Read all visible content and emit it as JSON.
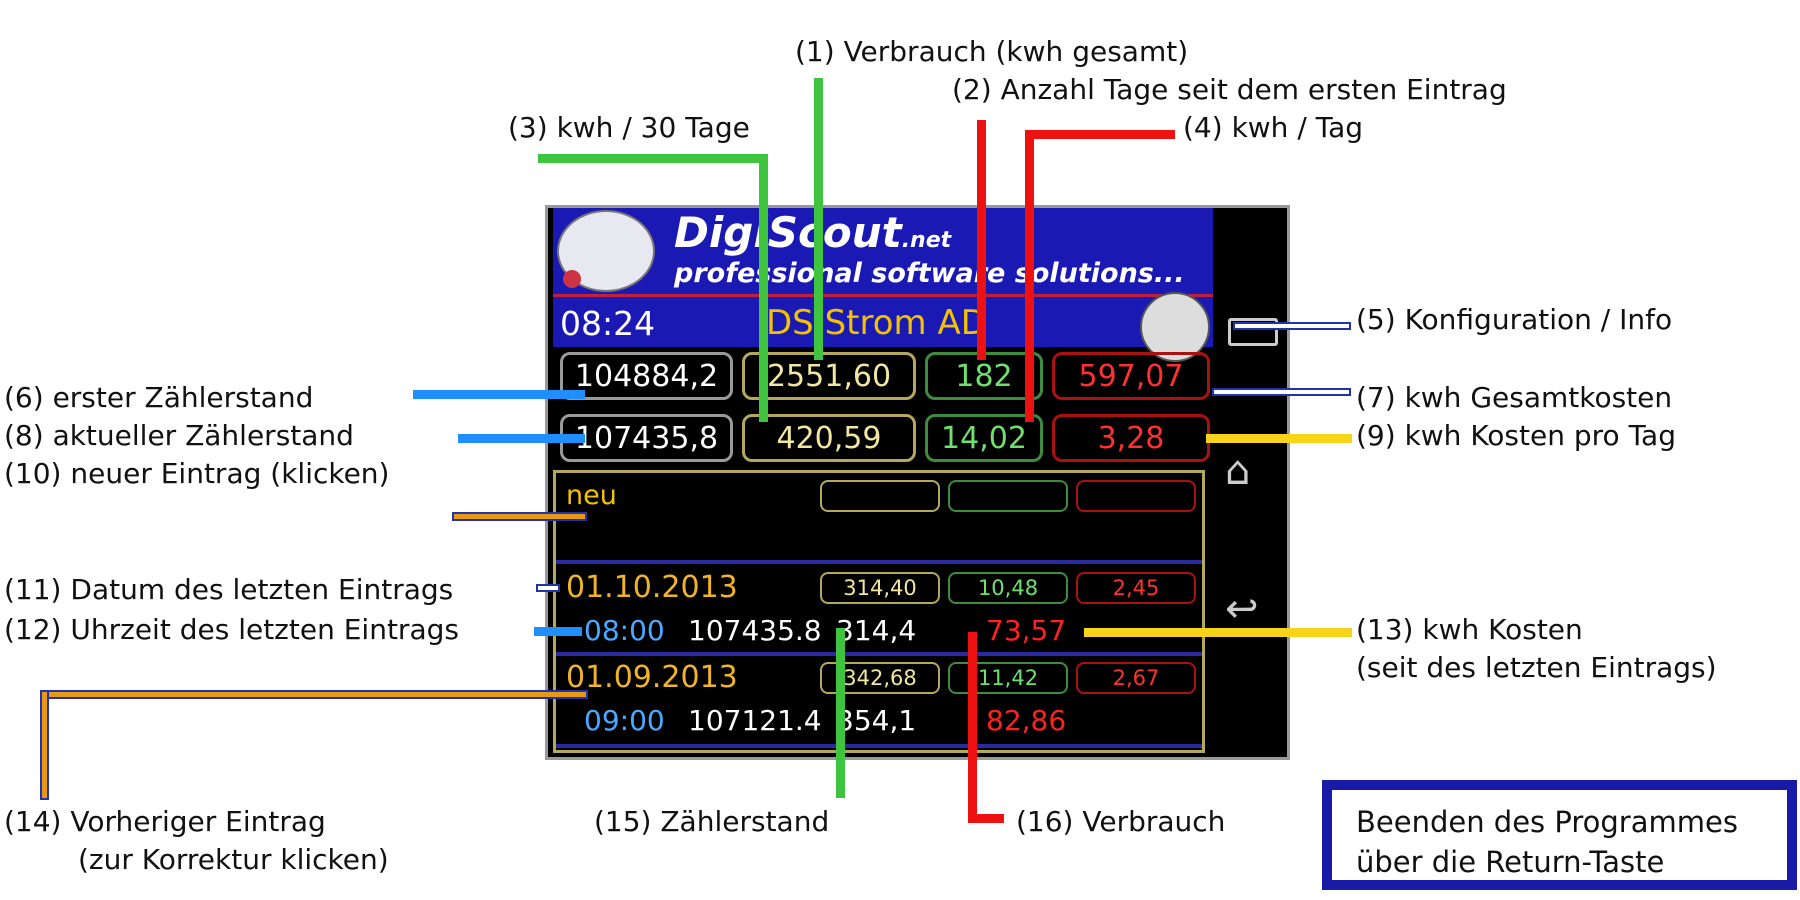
{
  "annotations": {
    "a1": "(1) Verbrauch (kwh gesamt)",
    "a2": "(2) Anzahl Tage seit dem ersten Eintrag",
    "a3": "(3) kwh / 30 Tage",
    "a4": "(4) kwh / Tag",
    "a5": "(5) Konfiguration / Info",
    "a6": "(6) erster Zählerstand",
    "a7": "(7) kwh Gesamtkosten",
    "a8": "(8) aktueller Zählerstand",
    "a9": "(9) kwh Kosten pro Tag",
    "a10": "(10) neuer Eintrag (klicken)",
    "a11": "(11) Datum des letzten Eintrags",
    "a12": "(12) Uhrzeit des letzten Eintrags",
    "a13_line1": "(13) kwh Kosten",
    "a13_line2": "(seit des letzten Eintrags)",
    "a14_line1": "(14) Vorheriger Eintrag",
    "a14_line2": "(zur Korrektur klicken)",
    "a15": "(15) Zählerstand",
    "a16": "(16) Verbrauch"
  },
  "exit_note": {
    "line1": "Beenden des Programmes",
    "line2": "über die Return-Taste"
  },
  "app": {
    "brand_main": "DigiScout",
    "brand_suffix": ".net",
    "slogan": "professional software solutions...",
    "clock": "08:24",
    "title": "DS Strom AD"
  },
  "summary": {
    "row1": {
      "first_reading": "104884,2",
      "consumption_total": "2551,60",
      "days": "182",
      "total_cost": "597,07"
    },
    "row2": {
      "current_reading": "107435,8",
      "kwh_30_days": "420,59",
      "kwh_per_day": "14,02",
      "cost_per_day": "3,28"
    }
  },
  "new_entry_label": "neu",
  "entries": [
    {
      "date": "01.10.2013",
      "kwh_30": "314,40",
      "kwh_day": "10,48",
      "cost_day": "2,45",
      "time": "08:00",
      "reading": "107435.8",
      "consumption": "314,4",
      "cost": "73,57"
    },
    {
      "date": "01.09.2013",
      "kwh_30": "342,68",
      "kwh_day": "11,42",
      "cost_day": "2,67",
      "time": "09:00",
      "reading": "107121.4",
      "consumption": "354,1",
      "cost": "82,86"
    }
  ],
  "icons": [
    "recent-apps-icon",
    "home-icon",
    "back-icon",
    "config-info-icon",
    "logo-icon"
  ],
  "colors": {
    "header_blue": "#1a19b3",
    "title_gold": "#f2c100",
    "date_gold": "#f0b428",
    "time_blue": "#4aa8ff",
    "exit_border": "#1a1aa8"
  }
}
